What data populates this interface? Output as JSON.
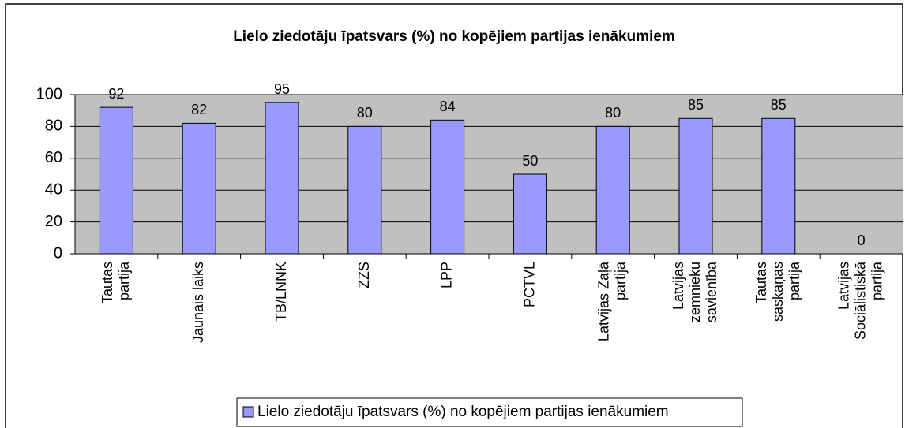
{
  "chart_data": {
    "type": "bar",
    "title": "Lielo ziedotāju īpatsvars (%) no kopējiem partijas ienākumiem",
    "categories": [
      "Tautas partija",
      "Jaunais laiks",
      "TB/LNNK",
      "ZZS",
      "LPP",
      "PCTVL",
      "Latvijas Zaļā partija",
      "Latvijas zemnieku savienība",
      "Tautas saskaņas partija",
      "Latvijas Sociālistiskā partija"
    ],
    "series": [
      {
        "name": "Lielo ziedotāju īpatsvars (%) no kopējiem partijas ienākumiem",
        "color": "#9999ff",
        "values": [
          92,
          82,
          95,
          80,
          84,
          50,
          80,
          85,
          85,
          0
        ]
      }
    ],
    "ylim": [
      0,
      100
    ],
    "yticks": [
      0,
      20,
      40,
      60,
      80,
      100
    ],
    "grid": true,
    "legend": "bottom"
  }
}
